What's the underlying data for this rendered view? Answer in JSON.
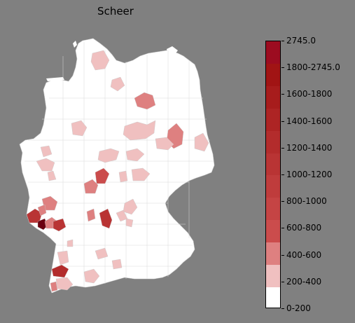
{
  "title": "Scheer",
  "legend": {
    "labels": [
      "0-200",
      "200-400",
      "400-600",
      "600-800",
      "800-1000",
      "1000-1200",
      "1200-1400",
      "1400-1600",
      "1600-1800",
      "1800-2745.0",
      "2745.0"
    ],
    "colors": [
      "#ffffff",
      "#f0c0c0",
      "#de8080",
      "#cb4c4c",
      "#c54444",
      "#bf3c3c",
      "#b93434",
      "#b32c2c",
      "#ad2424",
      "#a71c1c",
      "#a11414",
      "#9c0c20"
    ]
  },
  "map": {
    "background": "#808080",
    "land_color": "#ffffff",
    "border_color": "#bdbdbd"
  }
}
